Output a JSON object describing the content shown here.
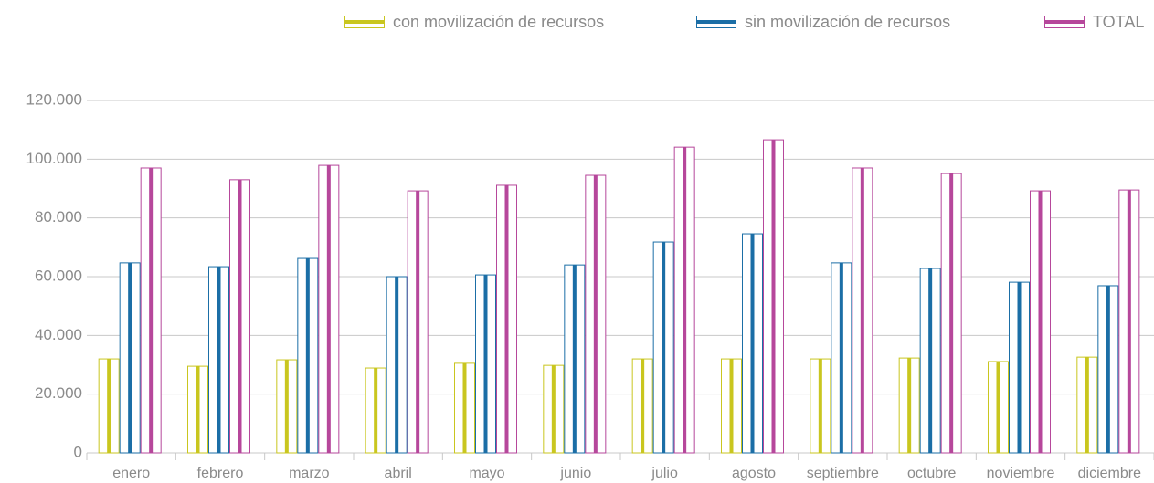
{
  "chart_data": {
    "type": "bar",
    "categories": [
      "enero",
      "febrero",
      "marzo",
      "abril",
      "mayo",
      "junio",
      "julio",
      "agosto",
      "septiembre",
      "octubre",
      "noviembre",
      "diciembre"
    ],
    "series": [
      {
        "name": "con movilización de recursos",
        "color": "#c9c61f",
        "values": [
          32000,
          29500,
          31700,
          28900,
          30500,
          29800,
          32000,
          32000,
          32000,
          32300,
          31100,
          32600
        ]
      },
      {
        "name": "sin movilización de recursos",
        "color": "#1b6ea6",
        "values": [
          64700,
          63400,
          66200,
          60000,
          60600,
          64000,
          71800,
          74600,
          64700,
          62800,
          58100,
          56900
        ]
      },
      {
        "name": "TOTAL",
        "color": "#b6479b",
        "values": [
          97000,
          93000,
          97900,
          89200,
          91100,
          94500,
          104100,
          106600,
          97000,
          95100,
          89200,
          89500
        ]
      }
    ],
    "ylim": [
      0,
      120000
    ],
    "yticks": [
      0,
      {
        "value": 20000,
        "label": "20.000"
      },
      {
        "value": 40000,
        "label": "40.000"
      },
      {
        "value": 60000,
        "label": "60.000"
      },
      {
        "value": 80000,
        "label": "80.000"
      },
      {
        "value": 100000,
        "label": "100.000"
      },
      {
        "value": 120000,
        "label": "120.000"
      }
    ],
    "grid": true,
    "legend": "top-right"
  }
}
